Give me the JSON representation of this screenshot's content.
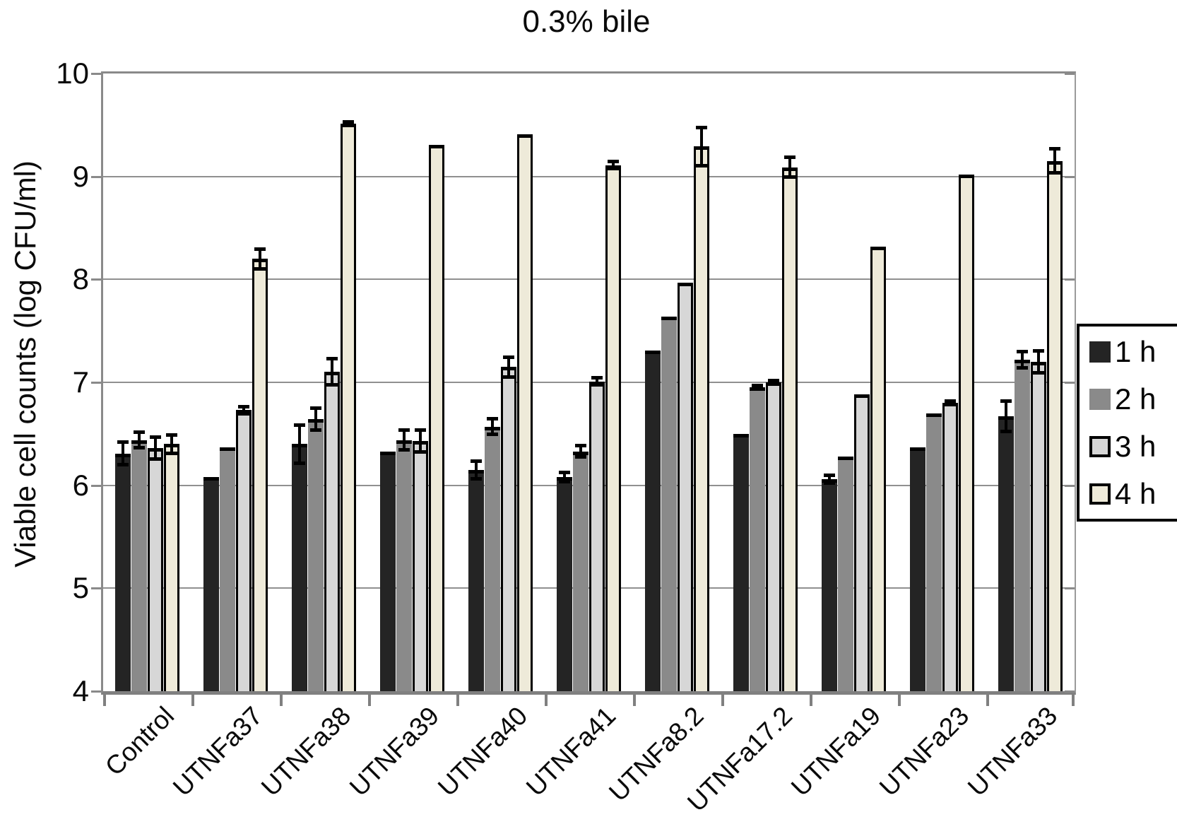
{
  "title": "0.3% bile",
  "y_axis": {
    "label": "Viable cell counts (log CFU/ml)",
    "ticks": [
      10,
      9,
      8,
      7,
      6,
      5,
      4
    ],
    "min": 4,
    "max": 10
  },
  "legend": {
    "position": "right",
    "entries": [
      "1 h",
      "2 h",
      "3 h",
      "4 h"
    ]
  },
  "colors": {
    "series_1h": "#242424",
    "series_2h": "#8a8a8a",
    "series_3h": "#d7d7d7",
    "series_4h": "#eeead9",
    "gridline": "#909090",
    "axis": "#808080",
    "text": "#0a0a0a",
    "background": "#ffffff"
  },
  "chart_data": {
    "type": "bar",
    "title": "0.3% bile",
    "xlabel": "",
    "ylabel": "Viable cell counts (log CFU/ml)",
    "ylim": [
      4,
      10
    ],
    "grid": true,
    "gridline_values": [
      4,
      5,
      6,
      7,
      8,
      9,
      10
    ],
    "legend_position": "right",
    "categories": [
      "Control",
      "UTNFa37",
      "UTNFa38",
      "UTNFa39",
      "UTNFa40",
      "UTNFa41",
      "UTNFa8.2",
      "UTNFa17.2",
      "UTNFa19",
      "UTNFa23",
      "UTNFa33"
    ],
    "series": [
      {
        "name": "1 h",
        "color": "#242424",
        "outlined": false,
        "values": [
          6.31,
          6.08,
          6.4,
          6.33,
          6.15,
          6.08,
          7.31,
          6.5,
          6.06,
          6.37,
          6.67
        ],
        "errors": [
          0.11,
          0,
          0.19,
          0,
          0.09,
          0.05,
          0,
          0,
          0.04,
          0,
          0.15
        ]
      },
      {
        "name": "2 h",
        "color": "#8a8a8a",
        "outlined": false,
        "values": [
          6.44,
          6.37,
          6.64,
          6.44,
          6.57,
          6.33,
          7.64,
          6.95,
          6.28,
          6.7,
          7.22
        ],
        "errors": [
          0.08,
          0,
          0.11,
          0.1,
          0.08,
          0.06,
          0,
          0.02,
          0,
          0,
          0.08
        ]
      },
      {
        "name": "3 h",
        "color": "#d7d7d7",
        "outlined": true,
        "values": [
          6.36,
          6.73,
          7.1,
          6.43,
          7.15,
          7.01,
          7.97,
          7.0,
          6.88,
          6.8,
          7.2
        ],
        "errors": [
          0.11,
          0.04,
          0.13,
          0.11,
          0.1,
          0.04,
          0,
          0.02,
          0,
          0.02,
          0.11
        ]
      },
      {
        "name": "4 h",
        "color": "#eeead9",
        "outlined": true,
        "values": [
          6.4,
          8.2,
          9.51,
          9.31,
          9.41,
          9.11,
          9.29,
          9.09,
          8.32,
          9.02,
          9.15
        ],
        "errors": [
          0.09,
          0.1,
          0.02,
          0,
          0,
          0.04,
          0.19,
          0.1,
          0,
          0,
          0.12
        ]
      }
    ]
  }
}
